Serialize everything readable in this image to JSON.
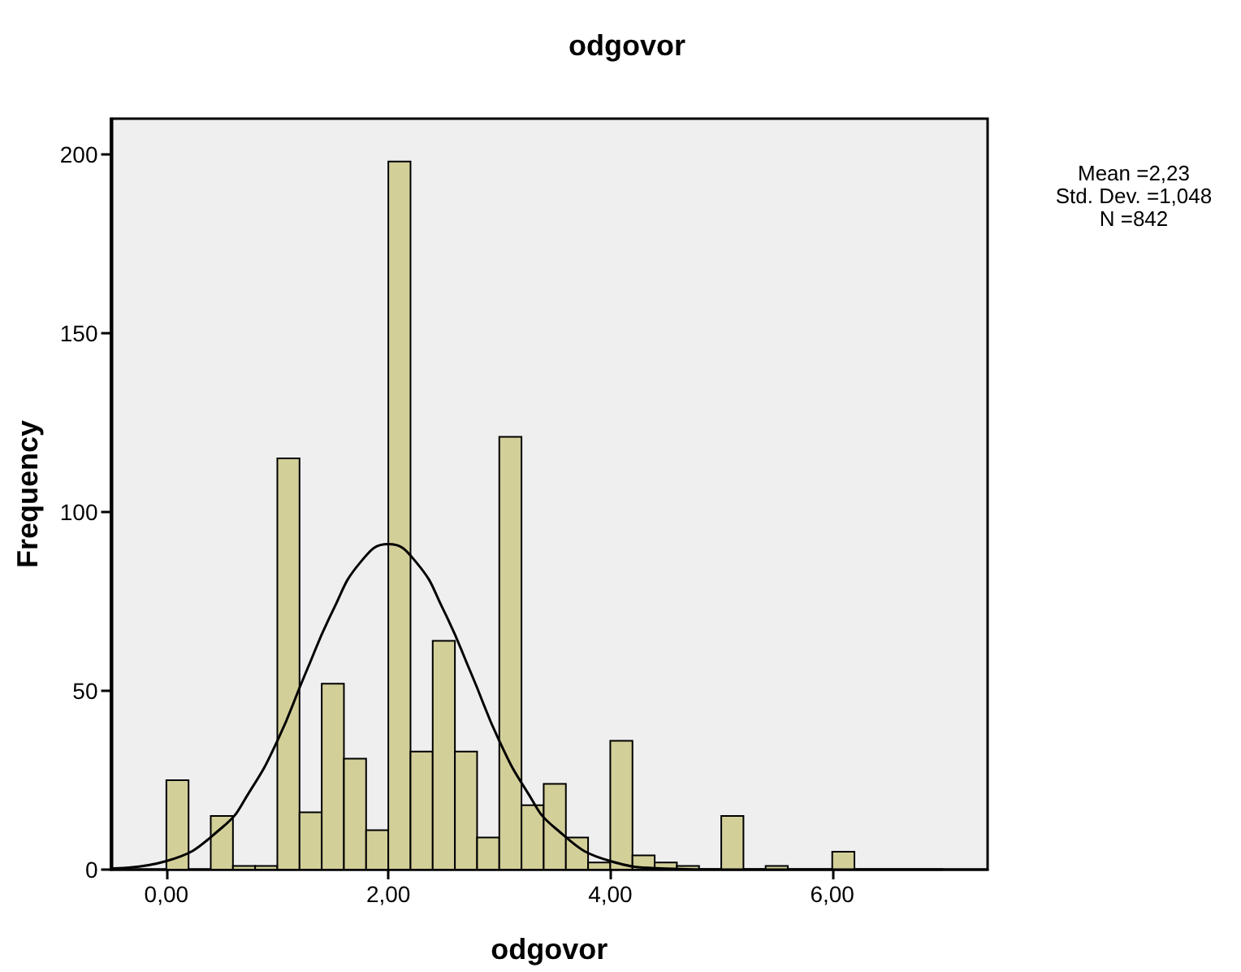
{
  "chart_data": {
    "type": "histogram",
    "title": "odgovor",
    "xlabel": "odgovor",
    "ylabel": "Frequency",
    "bins": [
      0,
      0.2,
      0.4,
      0.6,
      0.8,
      1.0,
      1.2,
      1.4,
      1.6,
      1.8,
      2.0,
      2.2,
      2.4,
      2.6,
      2.8,
      3.0,
      3.2,
      3.4,
      3.6,
      3.8,
      4.0,
      4.2,
      4.4,
      4.6,
      4.8,
      5.0,
      5.2,
      5.4,
      5.6,
      5.8,
      6.0,
      6.2
    ],
    "values": [
      25,
      0,
      15,
      1,
      1,
      115,
      16,
      52,
      31,
      11,
      198,
      33,
      64,
      33,
      9,
      121,
      18,
      24,
      9,
      2,
      36,
      4,
      2,
      1,
      0,
      15,
      0,
      1,
      0,
      0,
      5
    ],
    "color": "#d3cf99",
    "series": [
      {
        "type": "line",
        "color": "#000000",
        "x": [
          -0.5,
          0,
          0.5,
          0.75,
          1.0,
          1.25,
          1.5,
          1.75,
          2.0,
          2.25,
          2.5,
          2.75,
          3.0,
          3.25,
          3.5,
          4.0,
          4.5,
          5.0,
          6.0,
          7.0
        ],
        "values": [
          0.3,
          2.4,
          11.7,
          21.8,
          36,
          54.6,
          72.4,
          86,
          91,
          86,
          72.4,
          54.6,
          36,
          21.8,
          11.7,
          2.4,
          0.3,
          0,
          0,
          0
        ]
      }
    ],
    "xlim": [
      -0.5,
      7.4
    ],
    "xticks": [
      {
        "value": 0,
        "label": "0,00"
      },
      {
        "value": 2,
        "label": "2,00"
      },
      {
        "value": 4,
        "label": "4,00"
      },
      {
        "value": 6,
        "label": "6,00"
      }
    ],
    "ylim": [
      0,
      210
    ],
    "yticks": [
      0,
      50,
      100,
      150,
      200
    ],
    "annotations": [
      "Mean =2,23",
      "Std. Dev. =1,048",
      "N =842"
    ],
    "grid": false
  }
}
